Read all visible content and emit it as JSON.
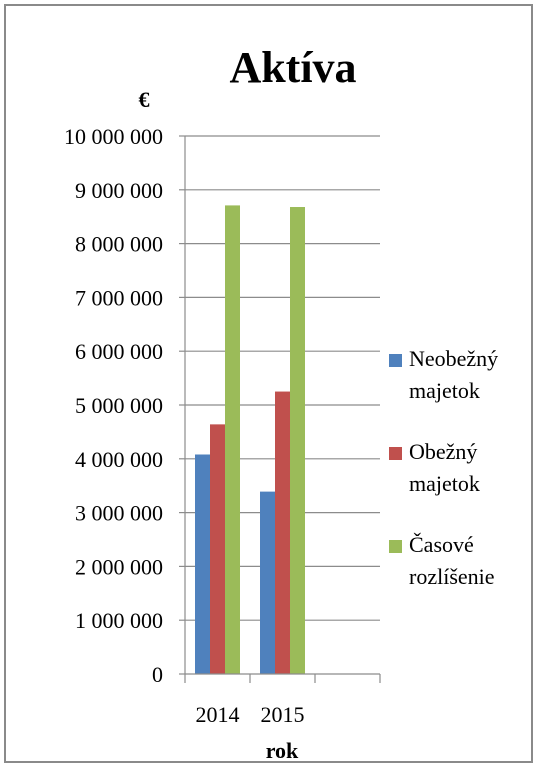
{
  "chart_data": {
    "type": "bar",
    "title": "Aktíva",
    "ylabel": "€",
    "xlabel": "rok",
    "categories": [
      "2014",
      "2015",
      ""
    ],
    "series": [
      {
        "name": "Neobežný majetok",
        "name_lines": [
          "Neobežný",
          "majetok"
        ],
        "color": "#4f81bd",
        "values": [
          4080000,
          3390000,
          null
        ]
      },
      {
        "name": "Obežný majetok",
        "name_lines": [
          "Obežný",
          "majetok"
        ],
        "color": "#c0504d",
        "values": [
          4640000,
          5250000,
          null
        ]
      },
      {
        "name": "Časové rozlíšenie",
        "name_lines": [
          "Časové",
          "rozlíšenie"
        ],
        "color": "#9bbb59",
        "values": [
          8710000,
          8680000,
          null
        ]
      }
    ],
    "ylim": [
      0,
      10000000
    ],
    "yticks": [
      0,
      1000000,
      2000000,
      3000000,
      4000000,
      5000000,
      6000000,
      7000000,
      8000000,
      9000000,
      10000000
    ],
    "ytick_labels": [
      "0",
      "1 000 000",
      "2 000 000",
      "3 000 000",
      "4 000 000",
      "5 000 000",
      "6 000 000",
      "7 000 000",
      "8 000 000",
      "9 000 000",
      "10 000 000"
    ],
    "grid": true,
    "legend": "right"
  }
}
